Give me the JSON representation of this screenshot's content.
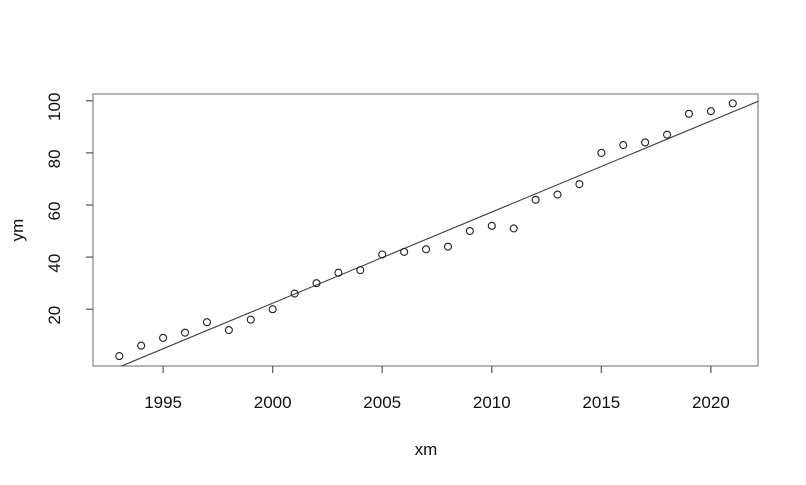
{
  "window": {
    "background": "#ffffff"
  },
  "chart_data": {
    "type": "scatter",
    "title": "",
    "xlabel": "xm",
    "ylabel": "ym",
    "x": [
      1993,
      1994,
      1995,
      1996,
      1997,
      1998,
      1999,
      2000,
      2001,
      2002,
      2003,
      2004,
      2005,
      2006,
      2007,
      2008,
      2009,
      2010,
      2011,
      2012,
      2013,
      2014,
      2015,
      2016,
      2017,
      2018,
      2019,
      2020,
      2021
    ],
    "y": [
      2,
      6,
      9,
      11,
      15,
      12,
      16,
      20,
      26,
      30,
      34,
      35,
      41,
      42,
      43,
      44,
      50,
      52,
      51,
      62,
      64,
      68,
      80,
      83,
      84,
      87,
      95,
      96,
      99
    ],
    "x_ticks": [
      "1995",
      "2000",
      "2005",
      "2010",
      "2015",
      "2020"
    ],
    "x_tick_values": [
      1995,
      2000,
      2005,
      2010,
      2015,
      2020
    ],
    "y_ticks": [
      "20",
      "40",
      "60",
      "80",
      "100"
    ],
    "y_tick_values": [
      20,
      40,
      60,
      80,
      100
    ],
    "xlim": [
      1991.8,
      2022.15
    ],
    "ylim": [
      -1.8,
      102.6
    ],
    "grid": false,
    "legend": null,
    "point_style": "open-circle",
    "regression_line": true,
    "colors": {
      "points": "#1f1f1f",
      "line": "#3d3d3d",
      "box": "#828282",
      "tick": "#555555",
      "text": "#111111"
    }
  }
}
